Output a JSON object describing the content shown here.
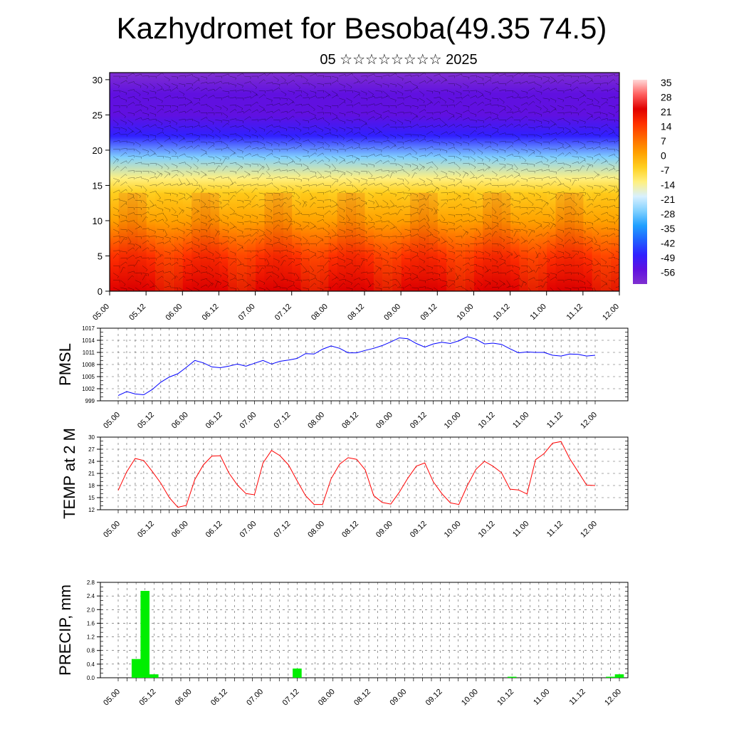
{
  "header": {
    "title": "Kazhydromet for Besoba(49.35 74.5)",
    "subtitle": "05 ☆☆☆☆☆☆☆☆ 2025"
  },
  "chart_data": [
    {
      "type": "heatmap",
      "name": "cross-section",
      "y_ticks": [
        "0",
        "5",
        "10",
        "15",
        "20",
        "25",
        "30"
      ],
      "ylim": [
        0,
        31
      ],
      "x_ticks": [
        "05.00",
        "05.12",
        "06.00",
        "06.12",
        "07.00",
        "07.12",
        "08.00",
        "08.12",
        "09.00",
        "09.12",
        "10.00",
        "10.12",
        "11.00",
        "11.12",
        "12.00"
      ],
      "colorbar_labels": [
        "35",
        "28",
        "21",
        "14",
        "7",
        "0",
        "-7",
        "-14",
        "-21",
        "-28",
        "-35",
        "-42",
        "-49",
        "-56"
      ],
      "colorbar_colors": [
        "#ffd8d8",
        "#ff6060",
        "#e00000",
        "#ff3000",
        "#ff6a00",
        "#ffa000",
        "#ffd020",
        "#fff080",
        "#d8f0ff",
        "#80d0ff",
        "#20a0ff",
        "#2060ff",
        "#3020ff",
        "#6010e0",
        "#8030d0"
      ],
      "temperature_profile_by_height": [
        {
          "height": 0,
          "value": 26
        },
        {
          "height": 5,
          "value": 16
        },
        {
          "height": 10,
          "value": 6
        },
        {
          "height": 14,
          "value": -4
        },
        {
          "height": 16,
          "value": -12
        },
        {
          "height": 19,
          "value": -28
        },
        {
          "height": 22,
          "value": -45
        },
        {
          "height": 25,
          "value": -52
        },
        {
          "height": 28,
          "value": -56
        },
        {
          "height": 31,
          "value": -58
        }
      ]
    },
    {
      "type": "line",
      "name": "PMSL",
      "ylabel": "PMSL",
      "y_ticks": [
        "999",
        "1002",
        "1005",
        "1008",
        "1011",
        "1014",
        "1017"
      ],
      "ylim": [
        999,
        1017
      ],
      "x_ticks": [
        "05.00",
        "05.12",
        "06.00",
        "06.12",
        "07.00",
        "07.12",
        "08.00",
        "08.12",
        "09.00",
        "09.12",
        "10.00",
        "10.12",
        "11.00",
        "11.12",
        "12.00"
      ],
      "x_hours": [
        0,
        3,
        6,
        9,
        12,
        15,
        18,
        21,
        24,
        27,
        30,
        33,
        36,
        39,
        42,
        45,
        48,
        51,
        54,
        57,
        60,
        63,
        66,
        69,
        72,
        75,
        78,
        81,
        84,
        87,
        90,
        93,
        96,
        99,
        102,
        105,
        108,
        111,
        114,
        117,
        120,
        123,
        126,
        129,
        132,
        135,
        138,
        141,
        144,
        147,
        150,
        153,
        156,
        159,
        162,
        165,
        168
      ],
      "values": [
        1000.3,
        1001.3,
        1000.7,
        1000.5,
        1001.8,
        1003.6,
        1004.9,
        1005.7,
        1007.3,
        1009.0,
        1008.4,
        1007.4,
        1007.2,
        1007.6,
        1008.1,
        1007.6,
        1008.3,
        1009.0,
        1008.1,
        1008.8,
        1009.1,
        1009.5,
        1010.7,
        1010.6,
        1011.8,
        1012.6,
        1012.0,
        1010.9,
        1010.9,
        1011.5,
        1012.0,
        1012.7,
        1013.6,
        1014.6,
        1014.4,
        1013.2,
        1012.3,
        1013.1,
        1013.5,
        1013.2,
        1013.9,
        1014.9,
        1014.3,
        1013.1,
        1013.3,
        1013.0,
        1011.9,
        1010.9,
        1011.1,
        1011.0,
        1011.0,
        1010.3,
        1010.1,
        1010.6,
        1010.5,
        1010.1,
        1010.3
      ],
      "color": "#0000ff"
    },
    {
      "type": "line",
      "name": "TEMP",
      "ylabel": "TEMP at 2 M",
      "y_ticks": [
        "12",
        "15",
        "18",
        "21",
        "24",
        "27",
        "30"
      ],
      "ylim": [
        12,
        30
      ],
      "x_ticks": [
        "05.00",
        "05.12",
        "06.00",
        "06.12",
        "07.00",
        "07.12",
        "08.00",
        "08.12",
        "09.00",
        "09.12",
        "10.00",
        "10.12",
        "11.00",
        "11.12",
        "12.00"
      ],
      "x_hours": [
        0,
        3,
        6,
        9,
        12,
        15,
        18,
        21,
        24,
        27,
        30,
        33,
        36,
        39,
        42,
        45,
        48,
        51,
        54,
        57,
        60,
        63,
        66,
        69,
        72,
        75,
        78,
        81,
        84,
        87,
        90,
        93,
        96,
        99,
        102,
        105,
        108,
        111,
        114,
        117,
        120,
        123,
        126,
        129,
        132,
        135,
        138,
        141,
        144,
        147,
        150,
        153,
        156,
        159,
        162,
        165,
        168
      ],
      "values": [
        16.8,
        21.4,
        24.7,
        24.2,
        21.5,
        18.6,
        15.0,
        12.6,
        13.1,
        19.5,
        23.1,
        25.3,
        25.4,
        21.1,
        18.1,
        16.0,
        15.7,
        23.6,
        26.7,
        25.4,
        23.1,
        19.2,
        15.5,
        13.3,
        13.3,
        19.7,
        23.3,
        24.9,
        24.5,
        21.9,
        15.5,
        13.8,
        13.4,
        16.3,
        19.8,
        22.8,
        23.6,
        18.9,
        16.0,
        13.7,
        13.3,
        18.0,
        22.0,
        24.0,
        22.8,
        21.2,
        17.1,
        16.9,
        15.9,
        24.4,
        25.9,
        28.5,
        28.9,
        24.7,
        21.4,
        18.1,
        18.0
      ],
      "color": "#ff0000"
    },
    {
      "type": "bar",
      "name": "PRECIP",
      "ylabel": "PRECIP, mm",
      "y_ticks": [
        "0.0",
        "0.4",
        "0.8",
        "1.2",
        "1.6",
        "2.0",
        "2.4",
        "2.8"
      ],
      "ylim": [
        0,
        2.8
      ],
      "x_ticks": [
        "05.00",
        "05.12",
        "06.00",
        "06.12",
        "07.00",
        "07.12",
        "08.00",
        "08.12",
        "09.00",
        "09.12",
        "10.00",
        "10.12",
        "11.00",
        "11.12",
        "12.00"
      ],
      "x_hours": [
        6,
        9,
        12,
        60,
        132,
        165,
        168
      ],
      "values": [
        0.55,
        2.55,
        0.1,
        0.27,
        0.03,
        0.03,
        0.1
      ],
      "color": "#00ee00"
    }
  ]
}
